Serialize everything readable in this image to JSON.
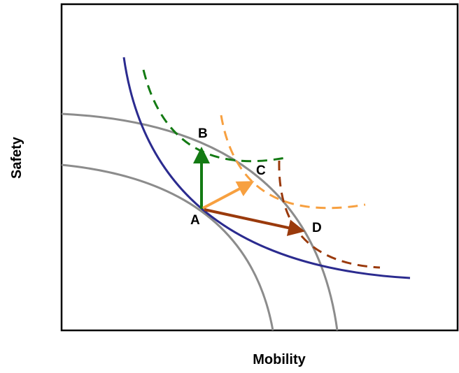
{
  "axes": {
    "x_label": "Mobility",
    "y_label": "Safety"
  },
  "points": {
    "a": "A",
    "b": "B",
    "c": "C",
    "d": "D"
  },
  "colors": {
    "frame": "#000000",
    "frontier": "#8c8c8c",
    "indifference": "#2b2b8f",
    "green": "#137a13",
    "orange": "#f7a040",
    "brown": "#9a3a0c"
  }
}
